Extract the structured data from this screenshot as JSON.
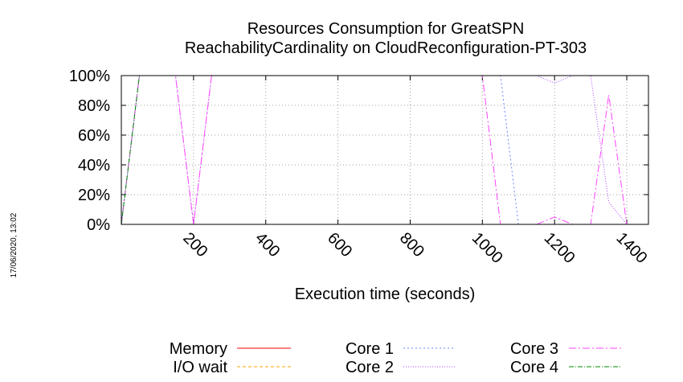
{
  "side_label": "17/06/2020, 13:02",
  "chart_data": {
    "type": "line",
    "title": "Resources Consumption for GreatSPN",
    "subtitle": "ReachabilityCardinality on CloudReconfiguration-PT-303",
    "xlabel": "Execution time (seconds)",
    "ylabel": "",
    "xlim": [
      0,
      1460
    ],
    "ylim": [
      0,
      100
    ],
    "x_ticks": [
      200,
      400,
      600,
      800,
      1000,
      1200,
      1400
    ],
    "x_tick_labels": [
      "200",
      "400",
      "600",
      "800",
      "1000",
      "1200",
      "1400"
    ],
    "y_ticks": [
      0,
      20,
      40,
      60,
      80,
      100
    ],
    "y_tick_labels": [
      "0%",
      "20%",
      "40%",
      "60%",
      "80%",
      "100%"
    ],
    "grid": true,
    "legend_position": "bottom",
    "series": [
      {
        "name": "Memory",
        "color": "#ff0000",
        "dash": "",
        "x": [],
        "y": []
      },
      {
        "name": "I/O wait",
        "color": "#ffa500",
        "dash": "4 3",
        "x": [],
        "y": []
      },
      {
        "name": "Core 1",
        "color": "#6a82ff",
        "dash": "2 3",
        "x": [
          0,
          50,
          1000,
          1050,
          1100,
          1140,
          1460
        ],
        "y": [
          0,
          100,
          100,
          100,
          0,
          0,
          0
        ]
      },
      {
        "name": "Core 2",
        "color": "#b040ff",
        "dash": "1 2",
        "x": [
          0,
          50,
          150,
          200,
          250,
          1000,
          1150,
          1200,
          1250,
          1300,
          1350,
          1400,
          1460
        ],
        "y": [
          0,
          100,
          100,
          0,
          100,
          100,
          100,
          95,
          100,
          100,
          15,
          0,
          0
        ]
      },
      {
        "name": "Core 3",
        "color": "#ff40ff",
        "dash": "9 3 2 3",
        "x": [
          0,
          50,
          150,
          200,
          250,
          1000,
          1050,
          1150,
          1200,
          1250,
          1300,
          1350,
          1400,
          1460
        ],
        "y": [
          0,
          100,
          100,
          0,
          100,
          100,
          0,
          0,
          5,
          0,
          0,
          87,
          0,
          0
        ]
      },
      {
        "name": "Core 4",
        "color": "#008a00",
        "dash": "6 2 1 2",
        "x": [
          0,
          50,
          1460
        ],
        "y": [
          0,
          100,
          100
        ]
      }
    ]
  }
}
